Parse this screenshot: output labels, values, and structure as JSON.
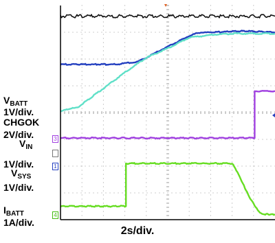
{
  "chart_data": {
    "type": "line",
    "timebase": "2s/div.",
    "labels": {
      "vbatt_name": "V",
      "vbatt_sub": "BATT",
      "vbatt_scale": "1V/div.",
      "chgok_name": "CHGOK",
      "chgok_scale": "2V/div.",
      "vin_name": "V",
      "vin_sub": "IN",
      "vin_scale": "1V/div.",
      "vsys_name": "V",
      "vsys_sub": "SYS",
      "vsys_scale": "1V/div.",
      "ibatt_name": "I",
      "ibatt_sub": "BATT",
      "ibatt_scale": "1A/div."
    },
    "markers": [
      "3",
      "1",
      "4"
    ],
    "grid": {
      "divisions_x": 10,
      "divisions_y": 8
    },
    "series": [
      {
        "id": "vin",
        "color": "#111111",
        "points": [
          [
            0,
            7.6
          ],
          [
            10,
            7.6
          ]
        ]
      },
      {
        "id": "vbatt",
        "color": "#2440c0",
        "points": [
          [
            0,
            5.8
          ],
          [
            2.6,
            5.8
          ],
          [
            3.6,
            5.9
          ],
          [
            4.6,
            6.3
          ],
          [
            5.6,
            6.7
          ],
          [
            6.3,
            6.95
          ],
          [
            7.0,
            7.0
          ],
          [
            8.6,
            7.05
          ],
          [
            10,
            7.0
          ]
        ]
      },
      {
        "id": "vsys",
        "color": "#60e0c8",
        "points": [
          [
            0,
            4.05
          ],
          [
            0.8,
            4.2
          ],
          [
            2.0,
            4.9
          ],
          [
            3.0,
            5.5
          ],
          [
            4.0,
            6.05
          ],
          [
            5.0,
            6.4
          ],
          [
            6.0,
            6.8
          ],
          [
            7.0,
            6.9
          ],
          [
            8.0,
            6.95
          ],
          [
            10,
            6.95
          ]
        ]
      },
      {
        "id": "chgok",
        "color": "#a040e0",
        "points": [
          [
            0,
            3.05
          ],
          [
            9.05,
            3.05
          ],
          [
            9.05,
            4.8
          ],
          [
            10,
            4.8
          ]
        ]
      },
      {
        "id": "ibatt",
        "color": "#66dd22",
        "points": [
          [
            0,
            0.5
          ],
          [
            3.05,
            0.5
          ],
          [
            3.05,
            2.1
          ],
          [
            8.0,
            2.1
          ],
          [
            8.2,
            1.85
          ],
          [
            8.35,
            1.6
          ],
          [
            8.5,
            1.35
          ],
          [
            8.65,
            1.1
          ],
          [
            8.8,
            0.85
          ],
          [
            9.0,
            0.6
          ],
          [
            9.2,
            0.35
          ],
          [
            9.4,
            0.2
          ],
          [
            10,
            0.2
          ]
        ]
      }
    ]
  }
}
